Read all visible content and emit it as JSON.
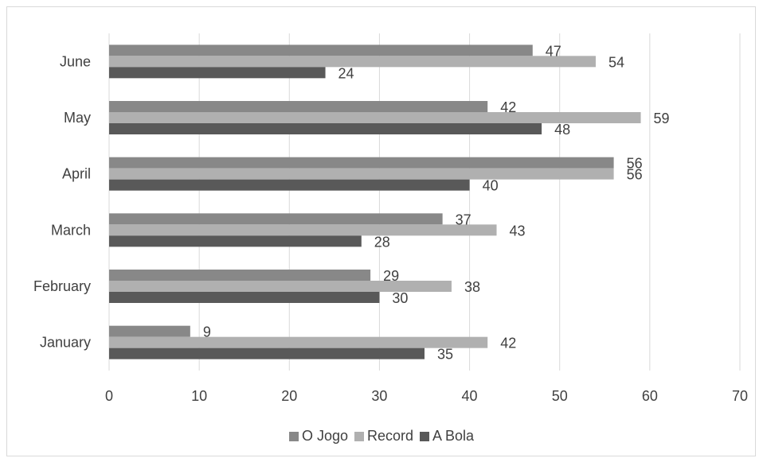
{
  "chart_data": {
    "type": "bar",
    "orientation": "horizontal",
    "categories": [
      "January",
      "February",
      "March",
      "April",
      "May",
      "June"
    ],
    "series": [
      {
        "name": "O Jogo",
        "color": "#888888",
        "values": [
          9,
          29,
          37,
          56,
          42,
          47
        ]
      },
      {
        "name": "Record",
        "color": "#b0b0b0",
        "values": [
          42,
          38,
          43,
          56,
          59,
          54
        ]
      },
      {
        "name": "A Bola",
        "color": "#595959",
        "values": [
          35,
          30,
          28,
          40,
          48,
          24
        ]
      }
    ],
    "xlim": [
      0,
      70
    ],
    "xticks": [
      0,
      10,
      20,
      30,
      40,
      50,
      60,
      70
    ],
    "grid": true,
    "legend_position": "bottom",
    "title": "",
    "xlabel": "",
    "ylabel": ""
  }
}
